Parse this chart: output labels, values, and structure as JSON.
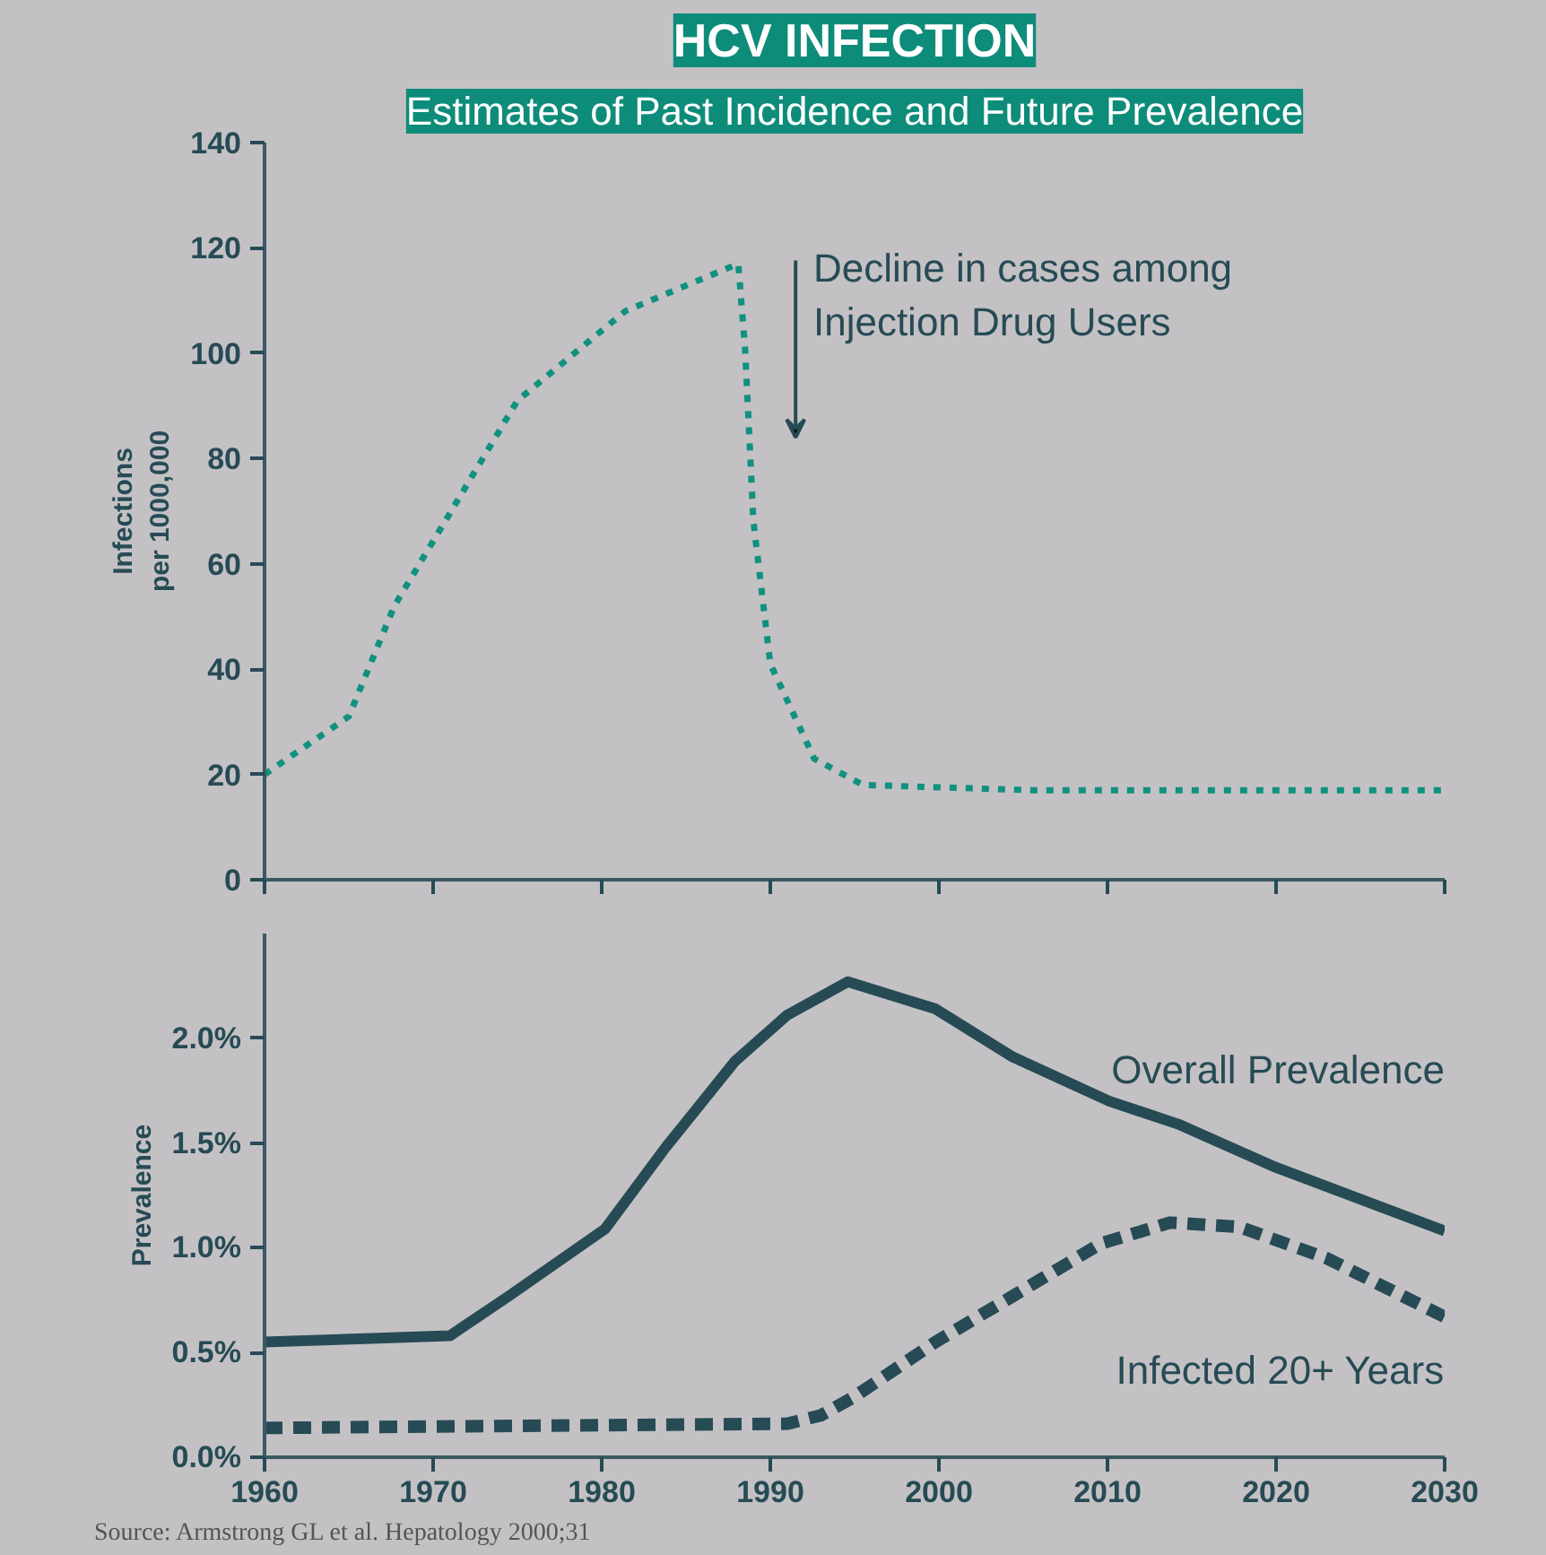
{
  "chart_data": [
    {
      "type": "line",
      "title": "HCV INFECTION",
      "subtitle": "Estimates of Past Incidence and Future Prevalence",
      "ylabel": "Infections\nper 1000,000",
      "x": [
        1960,
        1965,
        1967.7,
        1975,
        1981.4,
        1988.1,
        1988.5,
        1989,
        1990,
        1992.6,
        1995.5,
        2005.6,
        2030
      ],
      "series": [
        {
          "color": "#11917f",
          "values": [
            20,
            31,
            52,
            91,
            108,
            117,
            101,
            68,
            41,
            23,
            18,
            17,
            17
          ]
        }
      ],
      "xlim": [
        1960,
        2030
      ],
      "ylim": [
        0,
        140
      ],
      "xticks": [
        1960,
        1970,
        1980,
        1990,
        2000,
        2010,
        2020,
        2030
      ],
      "yticks": [
        0,
        20,
        40,
        60,
        80,
        100,
        120,
        140
      ],
      "tick_labels": "y",
      "line_style": "dotted",
      "grid": false,
      "annotations": [
        "Decline in cases among\nInjection Drug Users"
      ]
    },
    {
      "type": "line",
      "ylabel": "Prevalence",
      "series": [
        {
          "name": "Overall Prevalence",
          "color": "#264b55",
          "line_style": "solid",
          "x": [
            1960,
            1971,
            1974.5,
            1980.2,
            1983.8,
            1987.9,
            1991,
            1994.6,
            1999.8,
            2004.4,
            2010.1,
            2014.2,
            2019.8,
            2030
          ],
          "values": [
            0.55,
            0.58,
            0.77,
            1.09,
            1.48,
            1.89,
            2.11,
            2.27,
            2.14,
            1.91,
            1.7,
            1.59,
            1.39,
            1.08
          ]
        },
        {
          "name": "Infected 20+ Years",
          "color": "#264b55",
          "line_style": "dashed",
          "x": [
            1960,
            1991,
            1993,
            1995,
            1999.8,
            2004.4,
            2009.6,
            2013.7,
            2017.8,
            2023,
            2030
          ],
          "values": [
            0.14,
            0.16,
            0.2,
            0.29,
            0.55,
            0.77,
            1.02,
            1.12,
            1.1,
            0.95,
            0.67
          ]
        }
      ],
      "xlim": [
        1960,
        2030
      ],
      "ylim": [
        0,
        2.5
      ],
      "xticks": [
        1960,
        1970,
        1980,
        1990,
        2000,
        2010,
        2020,
        2030
      ],
      "yticks": [
        {
          "value": 0,
          "label": "0.0%"
        },
        {
          "value": 0.5,
          "label": "0.5%"
        },
        {
          "value": 1.0,
          "label": "1.0%"
        },
        {
          "value": 1.5,
          "label": "1.5%"
        },
        {
          "value": 2.0,
          "label": "2.0%"
        }
      ],
      "grid": false,
      "annotations": [
        "Source: Armstrong GL et al. Hepatology 2000;31"
      ]
    }
  ]
}
